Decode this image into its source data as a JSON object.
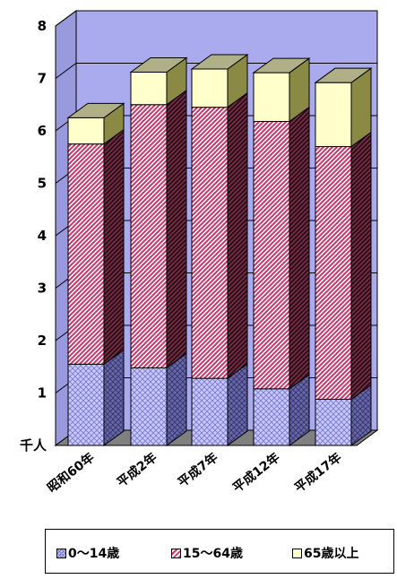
{
  "chart_data": {
    "type": "bar",
    "stacked": true,
    "three_d": true,
    "categories": [
      "昭和60年",
      "平成2年",
      "平成7年",
      "平成12年",
      "平成17年"
    ],
    "series": [
      {
        "name": "0～14歳",
        "values": [
          1.55,
          1.48,
          1.28,
          1.08,
          0.88
        ],
        "color": "#c8c8ff",
        "pattern": "crosshatch"
      },
      {
        "name": "15～64歳",
        "values": [
          4.2,
          5.02,
          5.17,
          5.1,
          4.82
        ],
        "color": "#cc3366",
        "pattern": "diagonal"
      },
      {
        "name": "65歳以上",
        "values": [
          0.5,
          0.62,
          0.73,
          0.93,
          1.22
        ],
        "color": "#ffffcc",
        "pattern": "solid"
      }
    ],
    "ylim": [
      0,
      8
    ],
    "yticks": [
      "8",
      "7",
      "6",
      "5",
      "4",
      "3",
      "2",
      "1"
    ],
    "y_unit_label": "千人",
    "legend_position": "bottom",
    "grid": true,
    "colors": {
      "wall": "#aaaaee",
      "floor": "#808080"
    }
  }
}
